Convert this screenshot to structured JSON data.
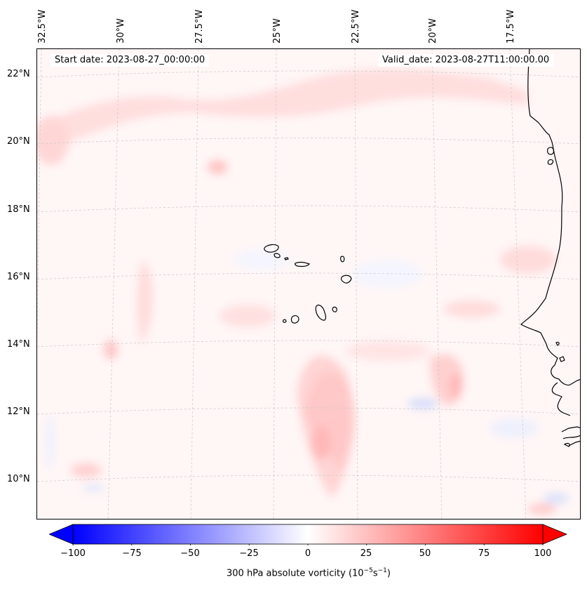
{
  "header": {
    "start_date": "Start date: 2023-08-27_00:00:00",
    "valid_date": "Valid_date: 2023-08-27T11:00:00.00"
  },
  "longitude_labels": [
    "32.5°W",
    "30°W",
    "27.5°W",
    "25°W",
    "22.5°W",
    "20°W",
    "17.5°W"
  ],
  "latitude_labels": [
    "22°N",
    "20°N",
    "18°N",
    "16°N",
    "14°N",
    "12°N",
    "10°N"
  ],
  "colorbar": {
    "label": "300 hPa absolute vorticity (10",
    "label_exp": "−5",
    "label_unit": "s",
    "label_unit_exp": "−1",
    "label_close": ")",
    "ticks": [
      "−100",
      "−75",
      "−50",
      "−25",
      "0",
      "25",
      "50",
      "75",
      "100"
    ],
    "min": -100,
    "max": 100,
    "colors": {
      "low": "#0000ff",
      "mid": "#ffffff",
      "high": "#ff0000"
    }
  },
  "colors": {
    "background": "#fff6f6",
    "coastline": "#000000",
    "gridline": "#c8c8c8"
  }
}
